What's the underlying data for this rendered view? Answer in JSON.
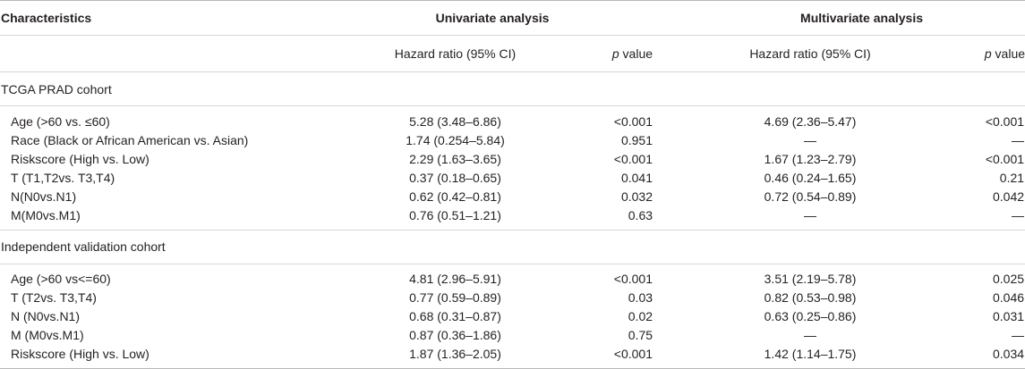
{
  "header": {
    "characteristics": "Characteristics",
    "univariate": "Univariate analysis",
    "multivariate": "Multivariate analysis"
  },
  "subheader": {
    "hr_uni": "Hazard ratio (95% CI)",
    "p_prefix_uni": "p",
    "p_suffix_uni": " value",
    "hr_multi": "Hazard ratio (95% CI)",
    "p_prefix_multi": "p",
    "p_suffix_multi": " value"
  },
  "cohorts": [
    {
      "name": "TCGA PRAD cohort",
      "rows": [
        {
          "label": "Age (>60 vs. ≤60)",
          "hr_uni": "5.28 (3.48–6.86)",
          "p_uni": "<0.001",
          "hr_multi": "4.69 (2.36–5.47)",
          "p_multi": "<0.001"
        },
        {
          "label": "Race (Black or African American vs. Asian)",
          "hr_uni": "1.74 (0.254–5.84)",
          "p_uni": "0.951",
          "hr_multi": "—",
          "p_multi": "—"
        },
        {
          "label": "Riskscore (High vs. Low)",
          "hr_uni": "2.29 (1.63–3.65)",
          "p_uni": "<0.001",
          "hr_multi": "1.67 (1.23–2.79)",
          "p_multi": "<0.001"
        },
        {
          "label": "T (T1,T2vs. T3,T4)",
          "hr_uni": "0.37 (0.18–0.65)",
          "p_uni": "0.041",
          "hr_multi": "0.46 (0.24–1.65)",
          "p_multi": "0.21"
        },
        {
          "label": "N(N0vs.N1)",
          "hr_uni": "0.62 (0.42–0.81)",
          "p_uni": "0.032",
          "hr_multi": "0.72 (0.54–0.89)",
          "p_multi": "0.042"
        },
        {
          "label": "M(M0vs.M1)",
          "hr_uni": "0.76 (0.51–1.21)",
          "p_uni": "0.63",
          "hr_multi": "—",
          "p_multi": "—"
        }
      ]
    },
    {
      "name": "Independent validation cohort",
      "rows": [
        {
          "label": "Age (>60 vs<=60)",
          "hr_uni": "4.81 (2.96–5.91)",
          "p_uni": "<0.001",
          "hr_multi": "3.51 (2.19–5.78)",
          "p_multi": "0.025"
        },
        {
          "label": "T (T2vs. T3,T4)",
          "hr_uni": "0.77 (0.59–0.89)",
          "p_uni": "0.03",
          "hr_multi": "0.82 (0.53–0.98)",
          "p_multi": "0.046"
        },
        {
          "label": "N (N0vs.N1)",
          "hr_uni": "0.68 (0.31–0.87)",
          "p_uni": "0.02",
          "hr_multi": "0.63 (0.25–0.86)",
          "p_multi": "0.031"
        },
        {
          "label": "M (M0vs.M1)",
          "hr_uni": "0.87 (0.36–1.86)",
          "p_uni": "0.75",
          "hr_multi": "—",
          "p_multi": "—"
        },
        {
          "label": "Riskscore (High vs. Low)",
          "hr_uni": "1.87 (1.36–2.05)",
          "p_uni": "<0.001",
          "hr_multi": "1.42 (1.14–1.75)",
          "p_multi": "0.034"
        }
      ]
    }
  ]
}
